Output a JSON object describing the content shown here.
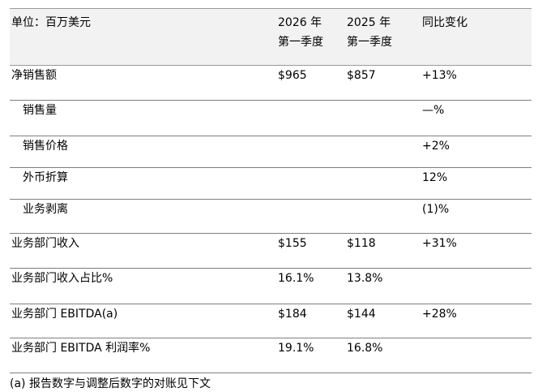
{
  "header": {
    "unit": "单位：百万美元",
    "col_2026": "2026 年\n第一季度",
    "col_2025": "2025 年\n第一季度",
    "col_change": "同比变化"
  },
  "rows": [
    {
      "label": "净销售额",
      "v2026": "$965",
      "v2025": "$857",
      "change": "+13%"
    },
    {
      "label": "销售量",
      "v2026": "",
      "v2025": "",
      "change": "—%"
    },
    {
      "label": "销售价格",
      "v2026": "",
      "v2025": "",
      "change": "+2%"
    },
    {
      "label": "外币折算",
      "v2026": "",
      "v2025": "",
      "change": "12%"
    },
    {
      "label": "业务剥离",
      "v2026": "",
      "v2025": "",
      "change": "(1)%"
    },
    {
      "label": "业务部门收入",
      "v2026": "$155",
      "v2025": "$118",
      "change": "+31%"
    },
    {
      "label": "业务部门收入占比%",
      "v2026": "16.1%",
      "v2025": "13.8%",
      "change": ""
    },
    {
      "label": "业务部门 EBITDA(a)",
      "v2026": "$184",
      "v2025": "$144",
      "change": "+28%"
    },
    {
      "label": "业务部门 EBITDA 利润率%",
      "v2026": "19.1%",
      "v2025": "16.8%",
      "change": ""
    }
  ],
  "footnote": "(a) 报告数字与调整后数字的对账见下文"
}
